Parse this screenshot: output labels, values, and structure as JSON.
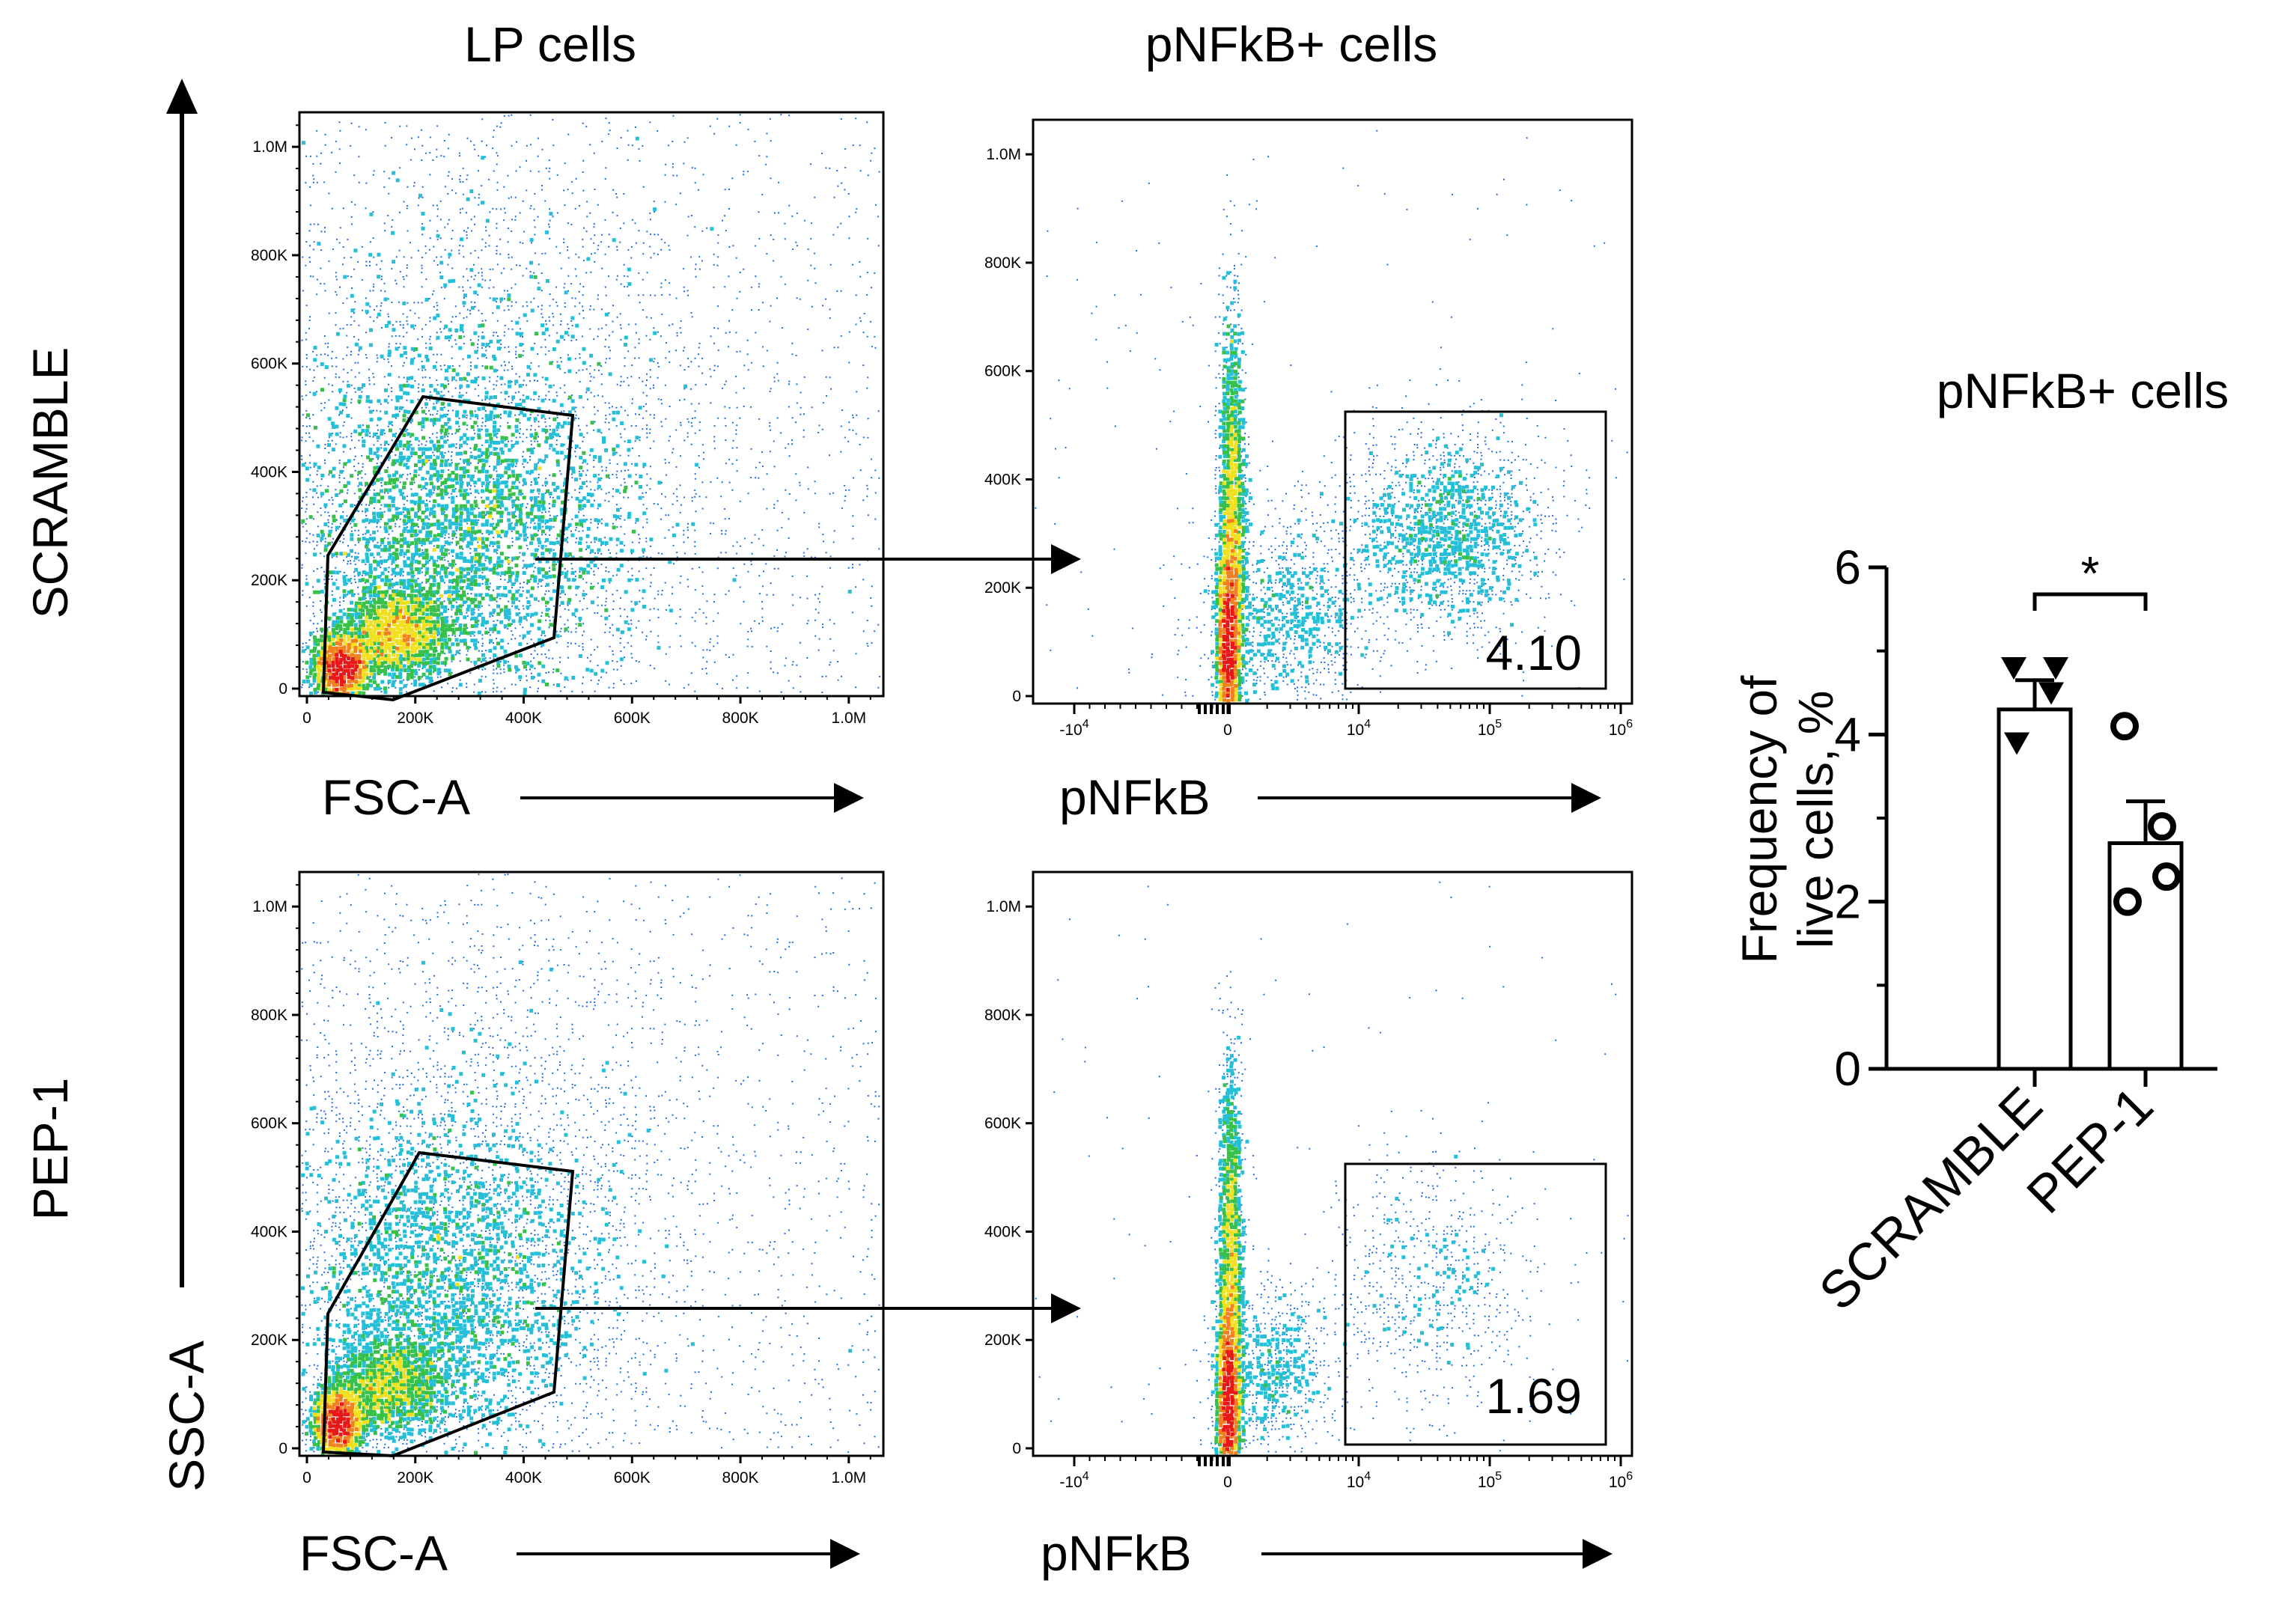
{
  "figure": {
    "column_titles": [
      "LP cells",
      "pNFkB+ cells"
    ],
    "row_labels": [
      "SCRAMBLE",
      "PEP-1"
    ],
    "ssc_axis_label": "SSC-A",
    "colors": {
      "scale": [
        "#1f2f8f",
        "#1f6fe0",
        "#25c0d8",
        "#37c04a",
        "#f0e020",
        "#f08020",
        "#e81818"
      ]
    }
  },
  "flow_plots": {
    "scatter": {
      "xlabel": "FSC-A",
      "ticks": [
        "0",
        "200K",
        "400K",
        "600K",
        "800K",
        "1.0M"
      ],
      "xlim": [
        0,
        1050000
      ],
      "ylim": [
        0,
        1050000
      ]
    },
    "pnfkb": {
      "xlabel": "pNFkB",
      "xticks": [
        {
          "base": "-10",
          "exp": "4",
          "value": -10000
        },
        {
          "base": "0",
          "exp": "",
          "value": 0
        },
        {
          "base": "10",
          "exp": "4",
          "value": 10000
        },
        {
          "base": "10",
          "exp": "5",
          "value": 100000
        },
        {
          "base": "10",
          "exp": "6",
          "value": 1000000
        }
      ],
      "yticks": [
        "0",
        "200K",
        "400K",
        "600K",
        "800K",
        "1.0M"
      ]
    },
    "gates": [
      {
        "row": "SCRAMBLE",
        "value": "4.10"
      },
      {
        "row": "PEP-1",
        "value": "1.69"
      }
    ]
  },
  "chart_data": {
    "type": "bar",
    "title": "pNFkB+ cells",
    "ylabel": "Frequency of live cells, %",
    "ylabel_lines": [
      "Frequency of",
      "live cells, %"
    ],
    "xlabel": "",
    "categories": [
      "SCRAMBLE",
      "PEP-1"
    ],
    "values": [
      4.3,
      2.7
    ],
    "errors": [
      0.35,
      0.5
    ],
    "points": [
      [
        4.8,
        4.5,
        4.8,
        3.9
      ],
      [
        4.1,
        2.9,
        2.3,
        2.0
      ]
    ],
    "markers": [
      "triangle-down",
      "circle-open"
    ],
    "yticks": [
      "0",
      "2",
      "4",
      "6"
    ],
    "ylim": [
      0,
      6
    ],
    "significance": "*"
  }
}
